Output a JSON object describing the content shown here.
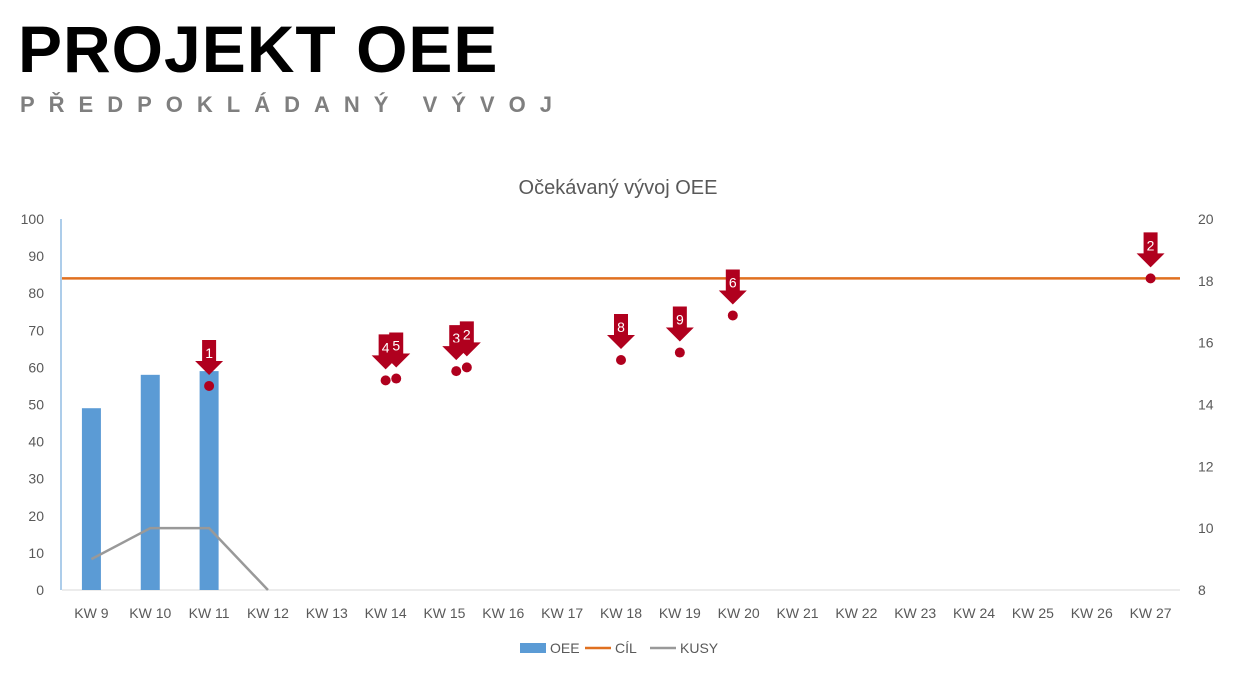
{
  "header": {
    "title": "PROJEKT OEE",
    "subtitle": "PŘEDPOKLÁDANÝ VÝVOJ"
  },
  "chart_data": {
    "type": "bar",
    "title": "Očekávaný vývoj OEE",
    "categories": [
      "KW 9",
      "KW 10",
      "KW 11",
      "KW 12",
      "KW 13",
      "KW 14",
      "KW 15",
      "KW 16",
      "KW 17",
      "KW 18",
      "KW 19",
      "KW 20",
      "KW 21",
      "KW 22",
      "KW 23",
      "KW 24",
      "KW 25",
      "KW 26",
      "KW 27"
    ],
    "y_left": {
      "ylim": [
        0,
        100
      ],
      "ticks": [
        "0",
        "10",
        "20",
        "30",
        "40",
        "50",
        "60",
        "70",
        "80",
        "90",
        "100"
      ]
    },
    "y_right": {
      "ylim": [
        8,
        20
      ],
      "ticks": [
        "8",
        "10",
        "12",
        "14",
        "16",
        "18",
        "20"
      ]
    },
    "series": [
      {
        "name": "OEE",
        "type": "bar",
        "axis": "left",
        "color": "#5b9bd5",
        "values": [
          49,
          58,
          59,
          null,
          null,
          null,
          null,
          null,
          null,
          null,
          null,
          null,
          null,
          null,
          null,
          null,
          null,
          null,
          null
        ]
      },
      {
        "name": "CÍL",
        "type": "line",
        "axis": "left",
        "color": "#e07020",
        "values": [
          84,
          84,
          84,
          84,
          84,
          84,
          84,
          84,
          84,
          84,
          84,
          84,
          84,
          84,
          84,
          84,
          84,
          84,
          84
        ]
      },
      {
        "name": "KUSY",
        "type": "line",
        "axis": "right",
        "color": "#999999",
        "values": [
          9,
          10,
          10,
          8,
          null,
          null,
          null,
          null,
          null,
          null,
          null,
          null,
          null,
          null,
          null,
          null,
          null,
          null,
          null
        ]
      }
    ],
    "markers": [
      {
        "label": "1",
        "x": 2,
        "y": 55
      },
      {
        "label": "4",
        "x": 5,
        "y": 56.5
      },
      {
        "label": "5",
        "x": 5.18,
        "y": 57
      },
      {
        "label": "3",
        "x": 6.2,
        "y": 59
      },
      {
        "label": "2",
        "x": 6.38,
        "y": 60
      },
      {
        "label": "8",
        "x": 9,
        "y": 62
      },
      {
        "label": "9",
        "x": 10,
        "y": 64
      },
      {
        "label": "6",
        "x": 10.9,
        "y": 74
      },
      {
        "label": "2",
        "x": 18.0,
        "y": 84
      }
    ],
    "marker_color": "#b0001e",
    "legend_position": "bottom",
    "grid": false
  }
}
